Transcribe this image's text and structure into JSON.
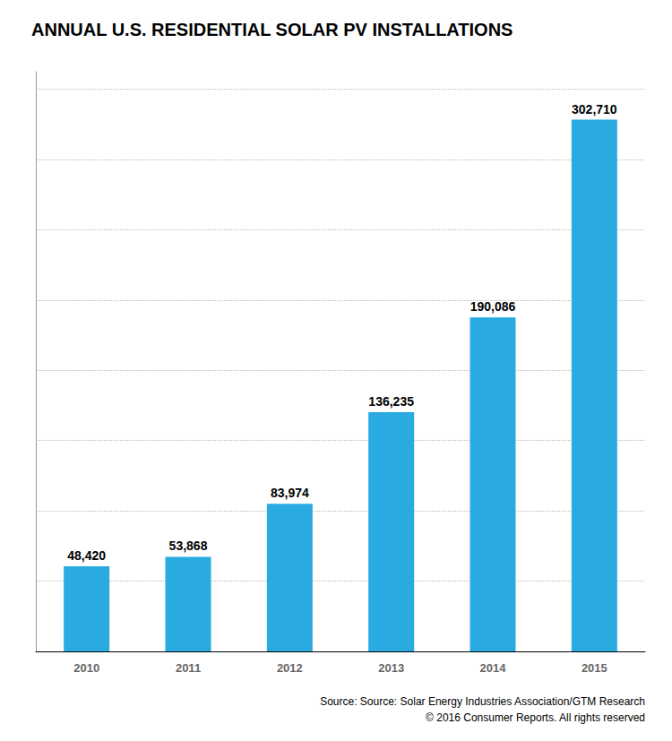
{
  "chart_data": {
    "type": "bar",
    "title": "ANNUAL U.S. RESIDENTIAL SOLAR PV INSTALLATIONS",
    "categories": [
      "2010",
      "2011",
      "2012",
      "2013",
      "2014",
      "2015"
    ],
    "values": [
      48420,
      53868,
      83974,
      136235,
      190086,
      302710
    ],
    "value_labels": [
      "48,420",
      "53,868",
      "83,974",
      "136,235",
      "190,086",
      "302,710"
    ],
    "data_labels": true,
    "color": "#29ABE2",
    "ylim": [
      0,
      330000
    ],
    "yticks": [
      0,
      40000,
      80000,
      120000,
      160000,
      200000,
      240000,
      280000,
      320000
    ],
    "grid": true,
    "tick_labels": "x",
    "annotations": [
      "Source: Source: Solar Energy Industries Association/GTM Research",
      "© 2016 Consumer Reports. All rights reserved"
    ]
  }
}
